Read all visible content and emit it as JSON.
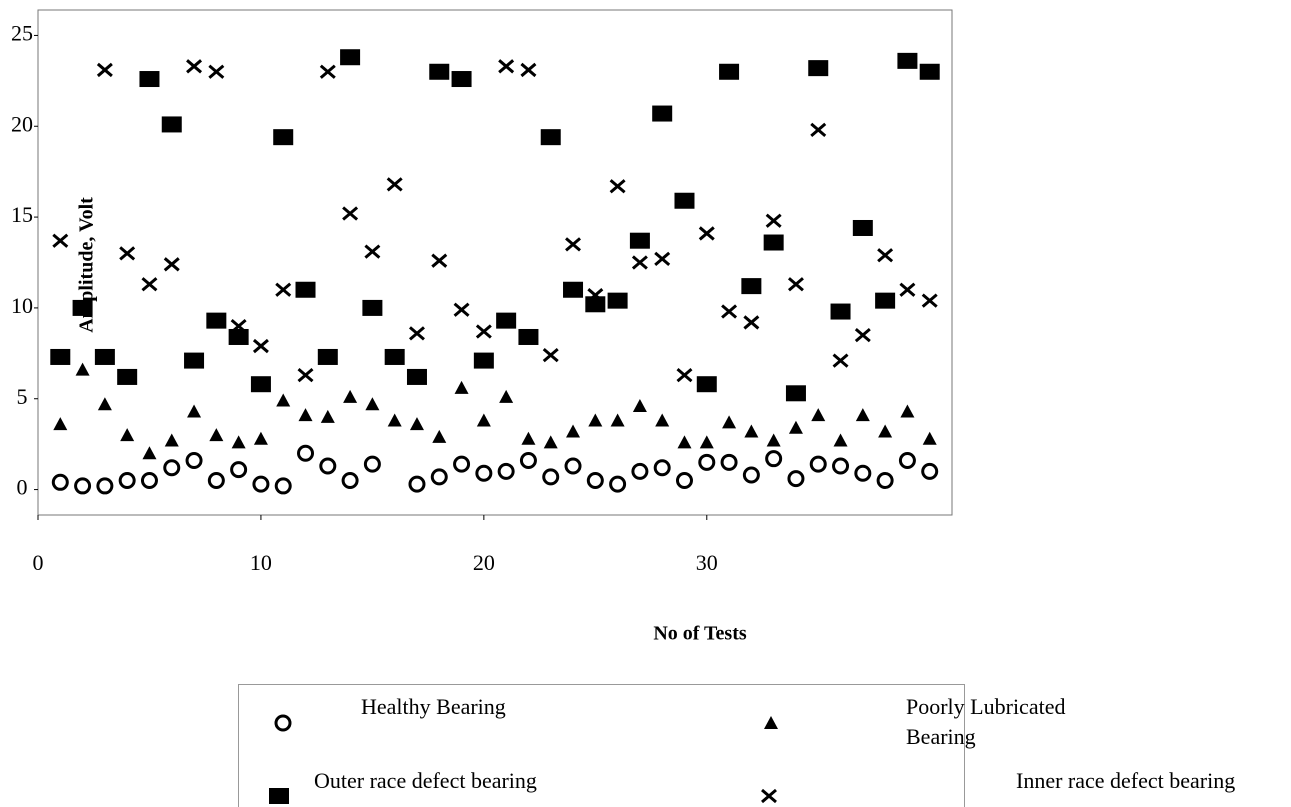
{
  "chart_data": {
    "type": "scatter",
    "y_label": "Amplitude, Volt",
    "x_label": "No of Tests",
    "x": [
      1,
      2,
      3,
      4,
      5,
      6,
      7,
      8,
      9,
      10,
      11,
      12,
      13,
      14,
      15,
      16,
      17,
      18,
      19,
      20,
      21,
      22,
      23,
      24,
      25,
      26,
      27,
      28,
      29,
      30,
      31,
      32,
      33,
      34,
      35,
      36,
      37,
      38,
      39,
      40
    ],
    "xlim": [
      0,
      41
    ],
    "xticks": [
      0,
      10,
      20,
      30
    ],
    "ylim": [
      -1.4,
      26.4
    ],
    "yticks": [
      0,
      5,
      10,
      15,
      20,
      25
    ],
    "series": [
      {
        "name": "Healthy Bearing",
        "marker": "circle",
        "color": "#000000",
        "values": [
          0.4,
          0.2,
          0.2,
          0.5,
          0.5,
          1.2,
          1.6,
          0.5,
          1.1,
          0.3,
          0.2,
          2.0,
          1.3,
          0.5,
          1.4,
          null,
          0.3,
          0.7,
          1.4,
          0.9,
          1.0,
          1.6,
          0.7,
          1.3,
          0.5,
          0.3,
          1.0,
          1.2,
          0.5,
          1.5,
          1.5,
          0.8,
          1.7,
          0.6,
          1.4,
          1.3,
          0.9,
          0.5,
          1.6,
          1.0
        ]
      },
      {
        "name": "Poorly Lubricated Bearing",
        "marker": "triangle",
        "color": "#000000",
        "values": [
          3.6,
          6.6,
          4.7,
          3.0,
          2.0,
          2.7,
          4.3,
          3.0,
          2.6,
          2.8,
          4.9,
          4.1,
          4.0,
          5.1,
          4.7,
          3.8,
          3.6,
          2.9,
          5.6,
          3.8,
          5.1,
          2.8,
          2.6,
          3.2,
          3.8,
          3.8,
          4.6,
          3.8,
          2.6,
          2.6,
          3.7,
          3.2,
          2.7,
          3.4,
          4.1,
          2.7,
          4.1,
          3.2,
          4.3,
          2.8
        ]
      },
      {
        "name": "Outer race defect bearing",
        "marker": "square",
        "color": "#000000",
        "values": [
          7.3,
          10.0,
          7.3,
          6.2,
          22.6,
          20.1,
          7.1,
          9.3,
          8.4,
          5.8,
          19.4,
          11.0,
          7.3,
          23.8,
          10.0,
          7.3,
          6.2,
          23.0,
          22.6,
          7.1,
          9.3,
          8.4,
          19.4,
          11.0,
          10.2,
          10.4,
          13.7,
          20.7,
          15.9,
          5.8,
          23.0,
          11.2,
          13.6,
          5.3,
          23.2,
          9.8,
          14.4,
          10.4,
          23.6,
          23.0
        ]
      },
      {
        "name": "Inner race defect bearing",
        "marker": "cross",
        "color": "#000000",
        "values": [
          13.7,
          null,
          23.1,
          13.0,
          11.3,
          12.4,
          23.3,
          23.0,
          9.0,
          7.9,
          11.0,
          6.3,
          23.0,
          15.2,
          13.1,
          16.8,
          8.6,
          12.6,
          9.9,
          8.7,
          23.3,
          23.1,
          7.4,
          13.5,
          10.7,
          16.7,
          12.5,
          12.7,
          6.3,
          14.1,
          9.8,
          9.2,
          14.8,
          11.3,
          19.8,
          7.1,
          8.5,
          12.9,
          11.0,
          10.4
        ]
      }
    ]
  }
}
